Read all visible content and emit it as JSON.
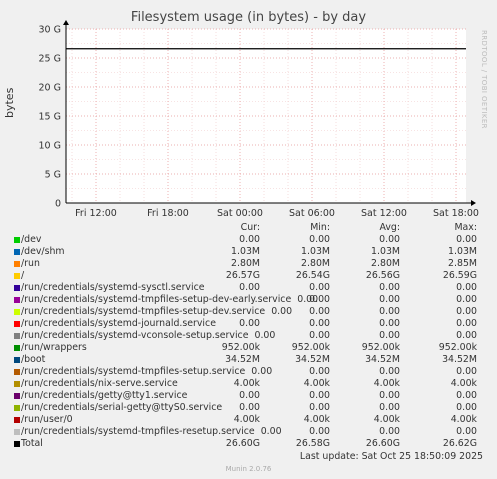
{
  "chart_data": {
    "type": "line",
    "title": "Filesystem usage (in bytes) - by day",
    "ylabel": "bytes",
    "ylim": [
      0,
      30
    ],
    "yticks": [
      "0",
      "5 G",
      "10 G",
      "15 G",
      "20 G",
      "25 G",
      "30 G"
    ],
    "xticks": [
      "Fri 12:00",
      "Fri 18:00",
      "Sat 00:00",
      "Sat 06:00",
      "Sat 12:00",
      "Sat 18:00"
    ],
    "series": [
      {
        "name": "Total",
        "values": [
          26.6,
          26.6,
          26.6,
          26.6,
          26.6,
          26.6,
          26.6
        ],
        "color": "#000000"
      }
    ],
    "grid": true
  },
  "watermark": "RRDTOOL / TOBI OETIKER",
  "legend": {
    "headers": {
      "cur": "Cur:",
      "min": "Min:",
      "avg": "Avg:",
      "max": "Max:"
    },
    "rows": [
      {
        "label": "/dev",
        "color": "#00cc00",
        "cur": "0.00",
        "min": "0.00",
        "avg": "0.00",
        "max": "0.00"
      },
      {
        "label": "/dev/shm",
        "color": "#0066b3",
        "cur": "1.03M",
        "min": "1.03M",
        "avg": "1.03M",
        "max": "1.03M"
      },
      {
        "label": "/run",
        "color": "#ff8000",
        "cur": "2.80M",
        "min": "2.80M",
        "avg": "2.80M",
        "max": "2.85M"
      },
      {
        "label": "/",
        "color": "#ffcc00",
        "cur": "26.57G",
        "min": "26.54G",
        "avg": "26.56G",
        "max": "26.59G"
      },
      {
        "label": "/run/credentials/systemd-sysctl.service",
        "color": "#330099",
        "cur": "0.00",
        "min": "0.00",
        "avg": "0.00",
        "max": "0.00"
      },
      {
        "label": "/run/credentials/systemd-tmpfiles-setup-dev-early.service",
        "color": "#990099",
        "cur": "0.00",
        "min": "0.00",
        "avg": "0.00",
        "max": "0.00"
      },
      {
        "label": "/run/credentials/systemd-tmpfiles-setup-dev.service",
        "color": "#ccff00",
        "cur": "0.00",
        "min": "0.00",
        "avg": "0.00",
        "max": "0.00"
      },
      {
        "label": "/run/credentials/systemd-journald.service",
        "color": "#ff0000",
        "cur": "0.00",
        "min": "0.00",
        "avg": "0.00",
        "max": "0.00"
      },
      {
        "label": "/run/credentials/systemd-vconsole-setup.service",
        "color": "#808080",
        "cur": "0.00",
        "min": "0.00",
        "avg": "0.00",
        "max": "0.00"
      },
      {
        "label": "/run/wrappers",
        "color": "#008f00",
        "cur": "952.00k",
        "min": "952.00k",
        "avg": "952.00k",
        "max": "952.00k"
      },
      {
        "label": "/boot",
        "color": "#00487d",
        "cur": "34.52M",
        "min": "34.52M",
        "avg": "34.52M",
        "max": "34.52M"
      },
      {
        "label": "/run/credentials/systemd-tmpfiles-setup.service",
        "color": "#b35a00",
        "cur": "0.00",
        "min": "0.00",
        "avg": "0.00",
        "max": "0.00"
      },
      {
        "label": "/run/credentials/nix-serve.service",
        "color": "#b38f00",
        "cur": "4.00k",
        "min": "4.00k",
        "avg": "4.00k",
        "max": "4.00k"
      },
      {
        "label": "/run/credentials/getty@tty1.service",
        "color": "#6b006b",
        "cur": "0.00",
        "min": "0.00",
        "avg": "0.00",
        "max": "0.00"
      },
      {
        "label": "/run/credentials/serial-getty@ttyS0.service",
        "color": "#8fb300",
        "cur": "0.00",
        "min": "0.00",
        "avg": "0.00",
        "max": "0.00"
      },
      {
        "label": "/run/user/0",
        "color": "#b30000",
        "cur": "4.00k",
        "min": "4.00k",
        "avg": "4.00k",
        "max": "4.00k"
      },
      {
        "label": "/run/credentials/systemd-tmpfiles-resetup.service",
        "color": "#bebebe",
        "cur": "0.00",
        "min": "0.00",
        "avg": "0.00",
        "max": "0.00"
      },
      {
        "label": "Total",
        "color": "#000000",
        "cur": "26.60G",
        "min": "26.58G",
        "avg": "26.60G",
        "max": "26.62G"
      }
    ]
  },
  "last_update": "Last update: Sat Oct 25 18:50:09 2025",
  "footer": "Munin 2.0.76"
}
